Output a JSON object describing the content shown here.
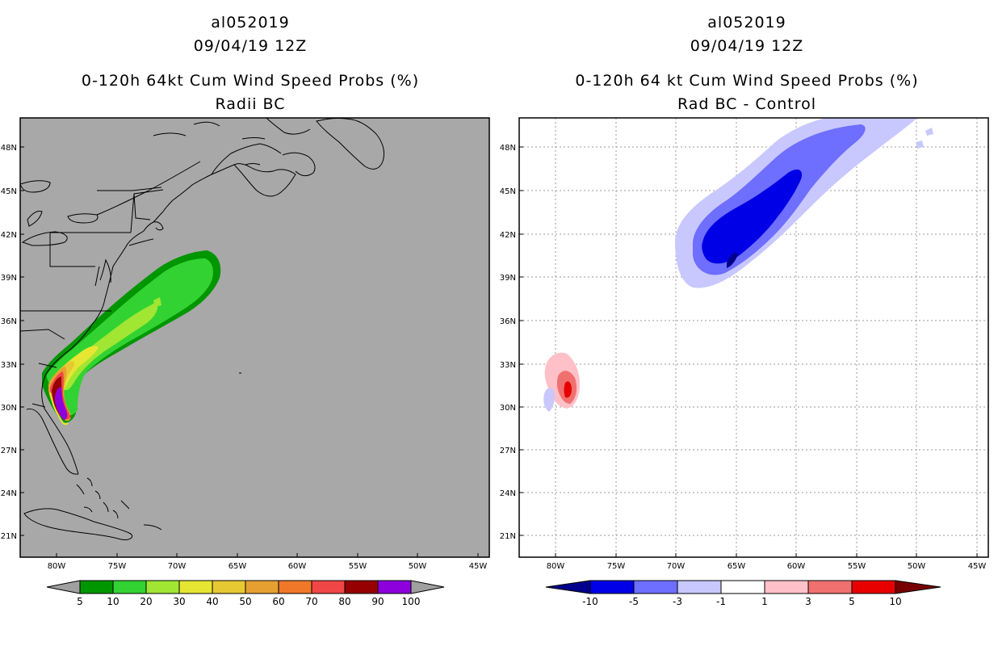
{
  "left_panel": {
    "storm": "al052019",
    "datetime": "09/04/19 12Z",
    "title": "0-120h 64kt Cum Wind Speed Probs (%)",
    "subtitle": "Radii BC",
    "background": "#a8a8a8",
    "colorbar": {
      "labels": [
        "5",
        "10",
        "20",
        "30",
        "40",
        "50",
        "60",
        "70",
        "80",
        "90",
        "100"
      ],
      "colors": [
        "#009600",
        "#32d232",
        "#a0e632",
        "#e6e632",
        "#e6c832",
        "#e6a032",
        "#f07828",
        "#f04646",
        "#960000",
        "#8c00dc"
      ],
      "end_color": "#a0a0a0"
    }
  },
  "right_panel": {
    "storm": "al052019",
    "datetime": "09/04/19 12Z",
    "title": "0-120h 64 kt Cum Wind Speed Probs (%)",
    "subtitle": "Rad BC - Control",
    "background": "#ffffff",
    "colorbar": {
      "labels": [
        "-10",
        "-5",
        "-3",
        "-1",
        "1",
        "3",
        "5",
        "10"
      ],
      "colors": [
        "#0000e6",
        "#6e6eff",
        "#c8c8ff",
        "#ffffff",
        "#ffc0c8",
        "#f07070",
        "#e60000"
      ],
      "low_end_color": "#00008c",
      "high_end_color": "#780000"
    }
  },
  "axes": {
    "lat_labels": [
      "21N",
      "24N",
      "27N",
      "30N",
      "33N",
      "36N",
      "39N",
      "42N",
      "45N",
      "48N"
    ],
    "lon_labels": [
      "80W",
      "75W",
      "70W",
      "65W",
      "60W",
      "55W",
      "50W",
      "45W"
    ]
  },
  "chart_data": [
    {
      "type": "heatmap",
      "title": "0-120h 64kt Cum Wind Speed Probs (%)",
      "subtitle": "Radii BC",
      "levels": [
        5,
        10,
        20,
        30,
        40,
        50,
        60,
        70,
        80,
        90,
        100
      ],
      "lon_range": [
        -83.3,
        -44.2
      ],
      "lat_range": [
        19.6,
        50.1
      ],
      "features": [
        {
          "name": "track-swath",
          "min_value": 5,
          "extent": "29N 80W to 41N 67W"
        },
        {
          "name": "core-maximum",
          "max_value": 100,
          "center": "30.5N 79.5W"
        }
      ]
    },
    {
      "type": "heatmap",
      "title": "0-120h 64 kt Cum Wind Speed Probs (%)",
      "subtitle": "Rad BC - Control",
      "levels": [
        -10,
        -5,
        -3,
        -1,
        1,
        3,
        5,
        10
      ],
      "lon_range": [
        -83.3,
        -44.2
      ],
      "lat_range": [
        19.6,
        50.1
      ],
      "features": [
        {
          "name": "negative-anomaly-north",
          "min_value": -10,
          "center": "42.5N 61.5W"
        },
        {
          "name": "positive-anomaly-coast",
          "max_value": 5,
          "center": "31.5N 79W"
        },
        {
          "name": "negative-anomaly-florida",
          "min_value": -3,
          "center": "30.5N 80.5W"
        }
      ]
    }
  ]
}
